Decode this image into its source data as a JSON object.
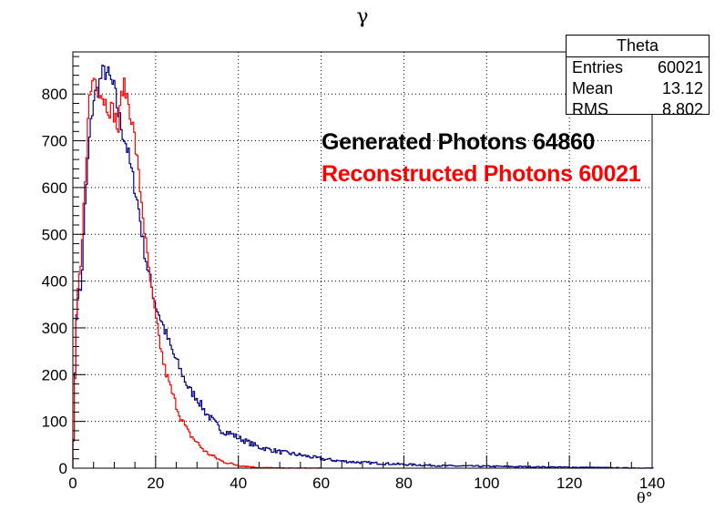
{
  "chart_data": {
    "type": "histogram",
    "title": "γ",
    "xlabel": "θ°",
    "ylabel": "",
    "xlim": [
      0,
      140
    ],
    "ylim": [
      0,
      890
    ],
    "xticks": [
      0,
      20,
      40,
      60,
      80,
      100,
      120,
      140
    ],
    "yticks": [
      0,
      100,
      200,
      300,
      400,
      500,
      600,
      700,
      800
    ],
    "grid": true,
    "stats_box": {
      "name": "Theta",
      "rows": [
        {
          "label": "Entries",
          "value": "60021"
        },
        {
          "label": "Mean",
          "value": "13.12"
        },
        {
          "label": "RMS",
          "value": "8.802"
        }
      ]
    },
    "annotations": [
      "Generated Photons 64860",
      "Reconstructed Photons 60021"
    ],
    "series": [
      {
        "color": "#000080",
        "x": [
          0,
          1,
          2,
          3,
          4,
          5,
          6,
          7,
          8,
          9,
          10,
          11,
          12,
          13,
          14,
          15,
          16,
          17,
          18,
          19,
          20,
          22,
          24,
          26,
          28,
          30,
          32,
          34,
          36,
          38,
          40,
          45,
          50,
          55,
          60,
          65,
          70,
          80,
          90,
          100,
          110,
          120,
          130,
          140
        ],
        "y": [
          0,
          370,
          380,
          560,
          700,
          790,
          810,
          840,
          850,
          830,
          810,
          760,
          720,
          690,
          640,
          600,
          550,
          480,
          430,
          390,
          350,
          300,
          250,
          210,
          170,
          150,
          120,
          100,
          80,
          75,
          65,
          45,
          35,
          28,
          20,
          15,
          12,
          8,
          5,
          4,
          3,
          2,
          1,
          0
        ]
      },
      {
        "color": "#ff0000",
        "x": [
          0,
          1,
          2,
          3,
          4,
          5,
          6,
          7,
          8,
          9,
          10,
          11,
          12,
          13,
          14,
          15,
          16,
          17,
          18,
          19,
          20,
          22,
          24,
          26,
          28,
          30,
          32,
          34,
          36,
          38,
          40,
          42,
          44,
          46,
          48,
          50,
          55,
          60
        ],
        "y": [
          0,
          360,
          430,
          630,
          790,
          840,
          820,
          800,
          780,
          770,
          760,
          720,
          820,
          800,
          760,
          700,
          620,
          540,
          450,
          380,
          320,
          220,
          160,
          110,
          75,
          55,
          35,
          25,
          15,
          10,
          6,
          4,
          2,
          1,
          1,
          0,
          0,
          0
        ]
      }
    ]
  }
}
